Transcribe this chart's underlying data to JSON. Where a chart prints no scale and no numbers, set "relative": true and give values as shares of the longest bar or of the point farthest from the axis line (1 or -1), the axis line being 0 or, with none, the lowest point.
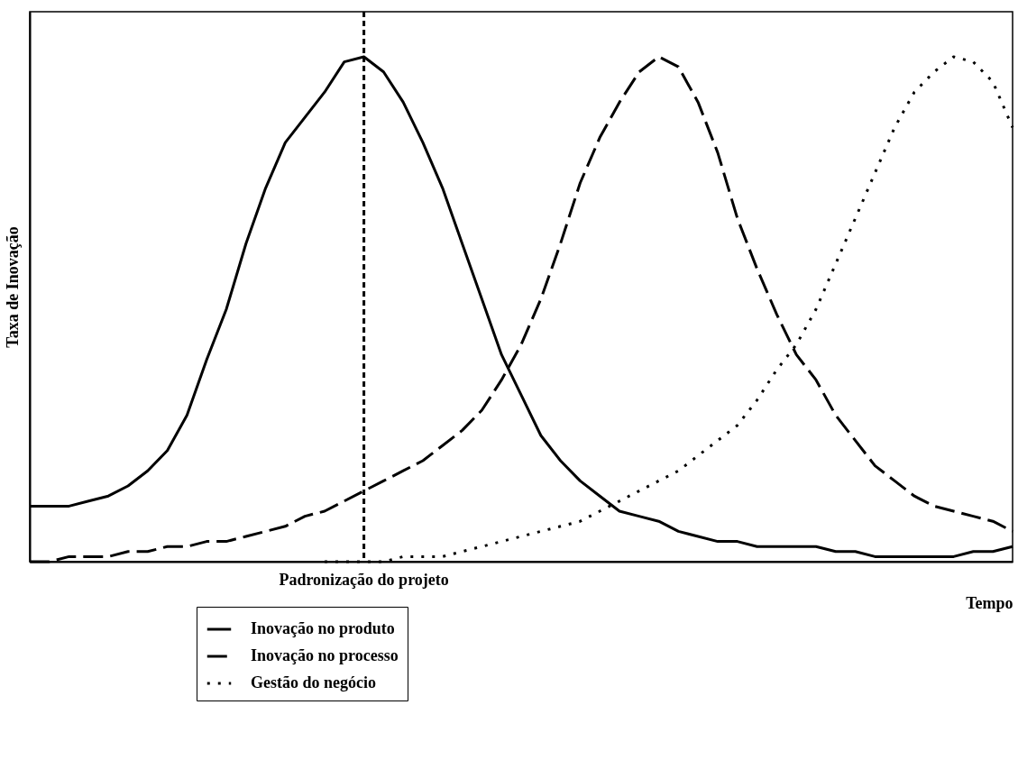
{
  "chart_data": {
    "type": "line",
    "relative": true,
    "xlabel": "Tempo",
    "ylabel": "Taxa de Inovação",
    "grid": false,
    "legend": "bottom",
    "marker": "none",
    "categories": [
      null,
      null,
      null,
      null,
      null,
      null,
      null,
      null,
      null,
      null,
      null,
      null,
      null,
      null,
      null,
      null,
      null,
      null,
      null,
      null,
      null,
      null,
      null,
      null,
      null,
      null,
      null,
      null,
      null,
      null,
      null,
      null,
      null,
      null,
      null,
      null,
      null,
      null,
      null,
      null,
      null,
      null,
      null,
      null,
      null,
      null,
      null,
      null,
      null,
      null,
      null
    ],
    "annotations": [
      "Padronização do projeto"
    ],
    "series": [
      {
        "name": "Inovação no produto",
        "color": "#000000",
        "line_style": "solid",
        "values": [
          0.11,
          0.11,
          0.11,
          0.12,
          0.13,
          0.15,
          0.18,
          0.22,
          0.29,
          0.4,
          0.5,
          0.63,
          0.74,
          0.83,
          0.88,
          0.93,
          0.99,
          1,
          0.97,
          0.91,
          0.83,
          0.74,
          0.63,
          0.52,
          0.41,
          0.33,
          0.25,
          0.2,
          0.16,
          0.13,
          0.1,
          0.09,
          0.08,
          0.06,
          0.05,
          0.04,
          0.04,
          0.03,
          0.03,
          0.03,
          0.03,
          0.02,
          0.02,
          0.01,
          0.01,
          0.01,
          0.01,
          0.01,
          0.02,
          0.02,
          0.03
        ]
      },
      {
        "name": "Inovação no processo",
        "color": "#000000",
        "line_style": "dashed",
        "values": [
          0.0,
          0.0,
          0.01,
          0.01,
          0.01,
          0.02,
          0.02,
          0.03,
          0.03,
          0.04,
          0.04,
          0.05,
          0.06,
          0.07,
          0.09,
          0.1,
          0.12,
          0.14,
          0.16,
          0.18,
          0.2,
          0.23,
          0.26,
          0.3,
          0.36,
          0.43,
          0.52,
          0.63,
          0.75,
          0.84,
          0.91,
          0.97,
          1,
          0.98,
          0.91,
          0.81,
          0.68,
          0.58,
          0.49,
          0.41,
          0.36,
          0.29,
          0.24,
          0.19,
          0.16,
          0.13,
          0.11,
          0.1,
          0.09,
          0.08,
          0.06
        ]
      },
      {
        "name": "Gestão do negócio",
        "color": "#000000",
        "line_style": "dotted",
        "values": [
          null,
          null,
          null,
          null,
          null,
          null,
          null,
          null,
          null,
          null,
          null,
          null,
          null,
          null,
          null,
          0,
          0,
          0,
          0,
          0.01,
          0.01,
          0.01,
          0.02,
          0.03,
          0.04,
          0.05,
          0.06,
          0.07,
          0.08,
          0.1,
          0.12,
          0.14,
          0.16,
          0.18,
          0.21,
          0.24,
          0.27,
          0.32,
          0.38,
          0.43,
          0.5,
          0.59,
          0.68,
          0.77,
          0.86,
          0.93,
          0.97,
          1.0,
          0.99,
          0.95,
          0.86
        ]
      }
    ]
  }
}
